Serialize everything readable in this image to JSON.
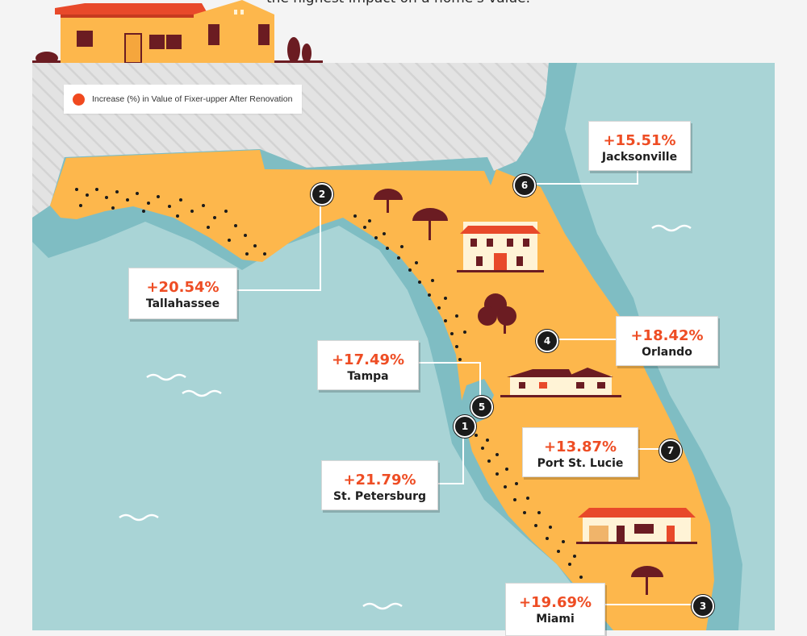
{
  "header": {
    "text": "the highest impact on a home's value."
  },
  "legend": {
    "label": "Increase (%) in Value of Fixer-upper After Renovation",
    "color": "#f0491f"
  },
  "colors": {
    "land": "#fdb74c",
    "sea": "#a9d4d6",
    "shore": "#7fbdc3",
    "accent": "#ee4d24",
    "dark": "#1b1b1b"
  },
  "cities": [
    {
      "rank": "1",
      "pct": "+21.79%",
      "city": "St. Petersburg"
    },
    {
      "rank": "2",
      "pct": "+20.54%",
      "city": "Tallahassee"
    },
    {
      "rank": "3",
      "pct": "+19.69%",
      "city": "Miami"
    },
    {
      "rank": "4",
      "pct": "+18.42%",
      "city": "Orlando"
    },
    {
      "rank": "5",
      "pct": "+17.49%",
      "city": "Tampa"
    },
    {
      "rank": "6",
      "pct": "+15.51%",
      "city": "Jacksonville"
    },
    {
      "rank": "7",
      "pct": "+13.87%",
      "city": "Port St. Lucie"
    }
  ],
  "icons": [
    "house-icon",
    "tree-icon",
    "wave-icon"
  ]
}
